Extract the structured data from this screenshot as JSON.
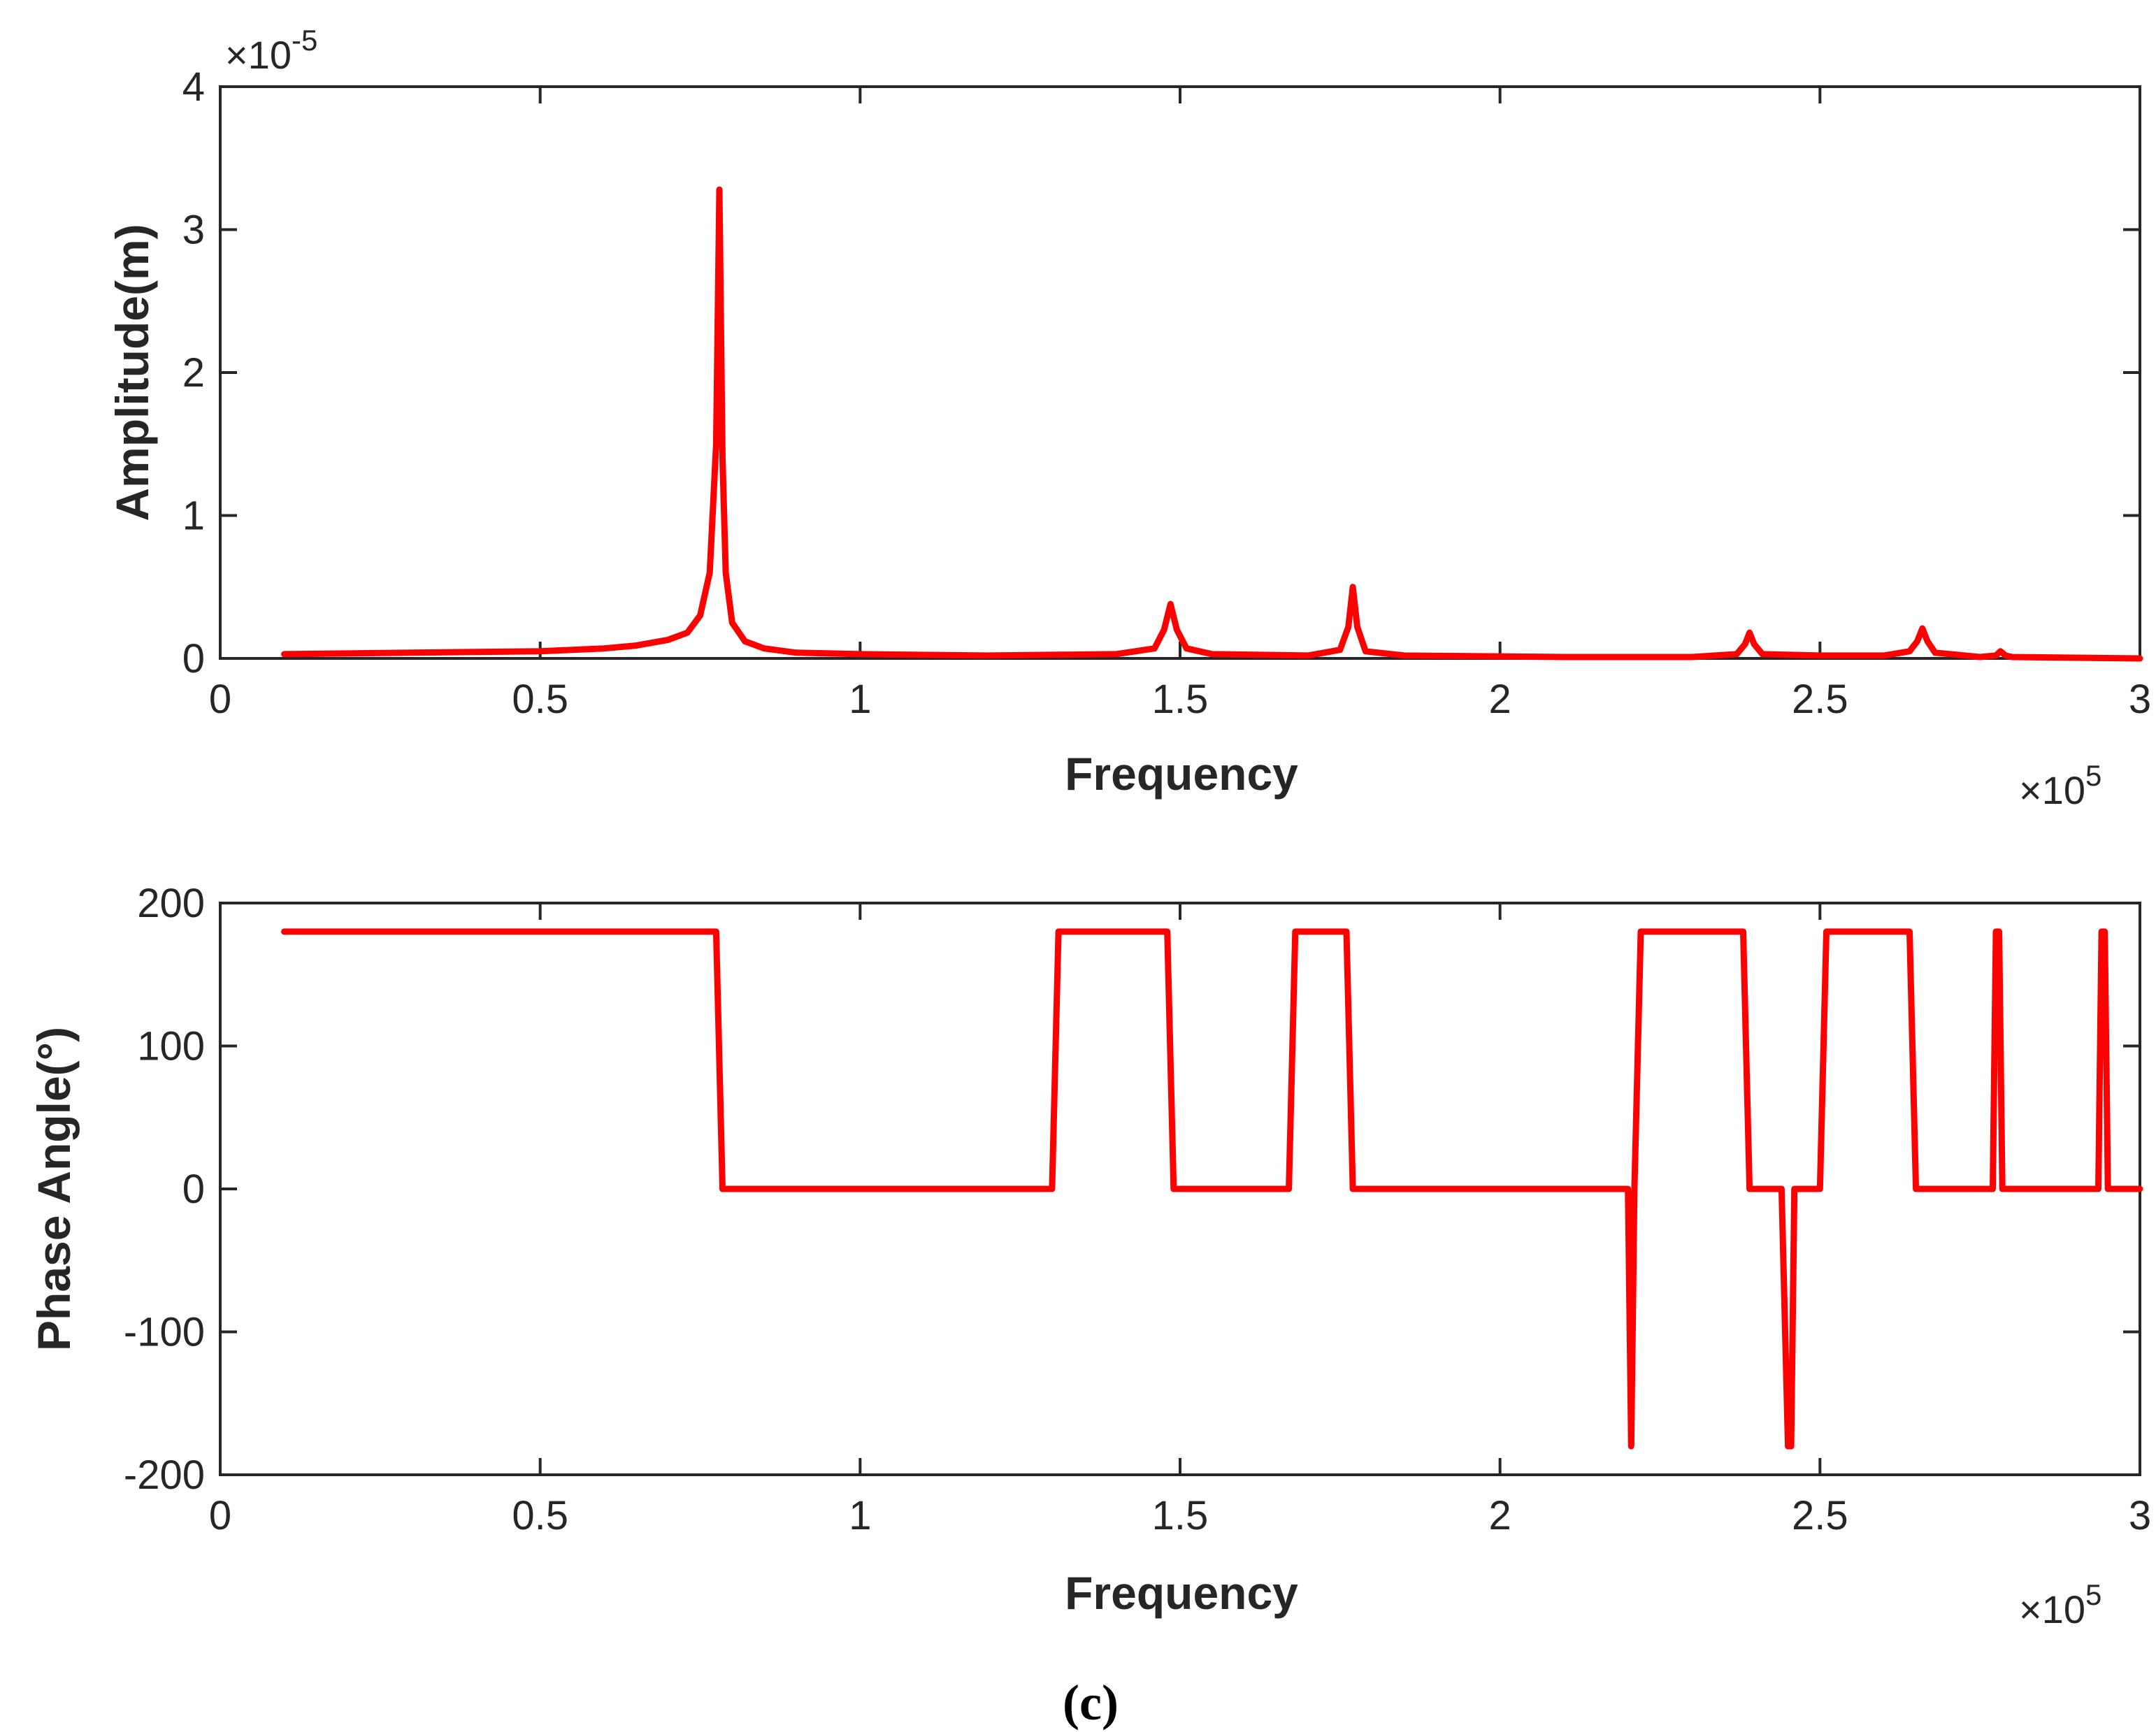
{
  "caption": "(c)",
  "colors": {
    "series": "#ff0000",
    "axes": "#262626"
  },
  "chart_data": [
    {
      "type": "line",
      "title": "",
      "xlabel": "Frequency",
      "ylabel": "Amplitude(m)",
      "x_exponent_base": "×10",
      "x_exponent_power": "5",
      "y_exponent_base": "×10",
      "y_exponent_power": "-5",
      "xlim": [
        0,
        3
      ],
      "ylim": [
        0,
        4
      ],
      "xticks": [
        0,
        0.5,
        1,
        1.5,
        2,
        2.5,
        3
      ],
      "xtick_labels": [
        "0",
        "0.5",
        "1",
        "1.5",
        "2",
        "2.5",
        "3"
      ],
      "yticks": [
        0,
        1,
        2,
        3,
        4
      ],
      "ytick_labels": [
        "0",
        "1",
        "2",
        "3",
        "4"
      ],
      "grid": false,
      "series": [
        {
          "name": "Amplitude",
          "color": "#ff0000",
          "x": [
            0.1,
            0.3,
            0.5,
            0.6,
            0.65,
            0.7,
            0.73,
            0.75,
            0.765,
            0.775,
            0.78,
            0.785,
            0.79,
            0.8,
            0.82,
            0.85,
            0.9,
            1.0,
            1.2,
            1.4,
            1.46,
            1.475,
            1.485,
            1.495,
            1.51,
            1.55,
            1.7,
            1.75,
            1.763,
            1.77,
            1.777,
            1.79,
            1.85,
            2.1,
            2.3,
            2.37,
            2.383,
            2.39,
            2.397,
            2.41,
            2.5,
            2.6,
            2.64,
            2.652,
            2.66,
            2.668,
            2.68,
            2.75,
            2.775,
            2.782,
            2.79,
            2.8,
            3.0
          ],
          "y": [
            0.03,
            0.04,
            0.05,
            0.07,
            0.09,
            0.13,
            0.18,
            0.3,
            0.6,
            1.5,
            3.28,
            1.4,
            0.6,
            0.25,
            0.12,
            0.07,
            0.04,
            0.03,
            0.02,
            0.03,
            0.07,
            0.2,
            0.38,
            0.2,
            0.07,
            0.03,
            0.02,
            0.06,
            0.22,
            0.5,
            0.22,
            0.05,
            0.02,
            0.01,
            0.01,
            0.03,
            0.1,
            0.18,
            0.1,
            0.03,
            0.02,
            0.02,
            0.05,
            0.12,
            0.21,
            0.12,
            0.04,
            0.01,
            0.02,
            0.05,
            0.02,
            0.01,
            0.0
          ]
        }
      ]
    },
    {
      "type": "line",
      "title": "",
      "xlabel": "Frequency",
      "ylabel": "Phase Angle(°)",
      "x_exponent_base": "×10",
      "x_exponent_power": "5",
      "xlim": [
        0,
        3
      ],
      "ylim": [
        -200,
        200
      ],
      "xticks": [
        0,
        0.5,
        1,
        1.5,
        2,
        2.5,
        3
      ],
      "xtick_labels": [
        "0",
        "0.5",
        "1",
        "1.5",
        "2",
        "2.5",
        "3"
      ],
      "yticks": [
        -200,
        -100,
        0,
        100,
        200
      ],
      "ytick_labels": [
        "-200",
        "-100",
        "0",
        "100",
        "200"
      ],
      "grid": false,
      "series": [
        {
          "name": "Phase",
          "color": "#ff0000",
          "x": [
            0.1,
            0.775,
            0.785,
            1.3,
            1.31,
            1.48,
            1.49,
            1.67,
            1.68,
            1.76,
            1.77,
            2.2,
            2.205,
            2.21,
            2.22,
            2.38,
            2.39,
            2.44,
            2.45,
            2.455,
            2.46,
            2.5,
            2.51,
            2.64,
            2.65,
            2.77,
            2.775,
            2.78,
            2.785,
            2.935,
            2.94,
            2.945,
            2.95,
            3.0
          ],
          "y": [
            180,
            180,
            0,
            0,
            180,
            180,
            0,
            0,
            180,
            180,
            0,
            0,
            -180,
            0,
            180,
            180,
            0,
            0,
            -180,
            -180,
            0,
            0,
            180,
            180,
            0,
            0,
            180,
            180,
            0,
            0,
            180,
            180,
            0,
            0
          ]
        }
      ]
    }
  ]
}
